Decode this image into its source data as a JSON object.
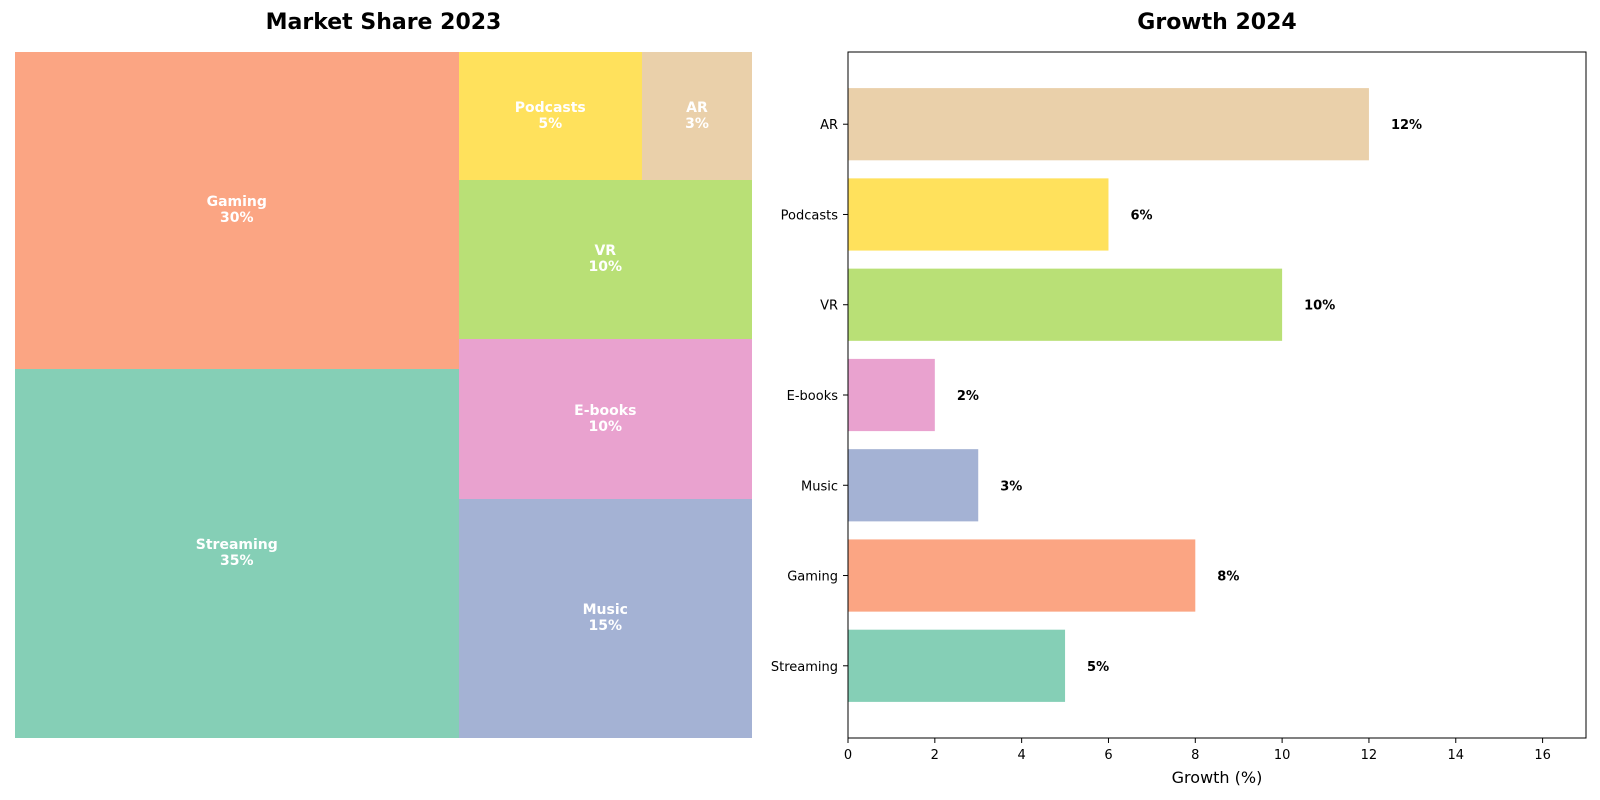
{
  "chart_data": [
    {
      "type": "treemap",
      "title": "Market Share 2023",
      "unit": "%",
      "items": [
        {
          "label": "Streaming",
          "value": 35,
          "color": "#85cfb6"
        },
        {
          "label": "Gaming",
          "value": 30,
          "color": "#fba583"
        },
        {
          "label": "Music",
          "value": 15,
          "color": "#a4b2d4"
        },
        {
          "label": "E-books",
          "value": 10,
          "color": "#e9a2cf"
        },
        {
          "label": "VR",
          "value": 10,
          "color": "#b9e076"
        },
        {
          "label": "Podcasts",
          "value": 5,
          "color": "#ffe15c"
        },
        {
          "label": "AR",
          "value": 3,
          "color": "#ead0aa"
        }
      ]
    },
    {
      "type": "bar",
      "orientation": "horizontal",
      "title": "Growth 2024",
      "xlabel": "Growth (%)",
      "ylabel": "",
      "xlim": [
        0,
        17
      ],
      "xticks": [
        0,
        2,
        4,
        6,
        8,
        10,
        12,
        14,
        16
      ],
      "categories": [
        "Streaming",
        "Gaming",
        "Music",
        "E-books",
        "VR",
        "Podcasts",
        "AR"
      ],
      "values": [
        5,
        8,
        3,
        2,
        10,
        6,
        12
      ],
      "value_labels": [
        "5%",
        "8%",
        "3%",
        "2%",
        "10%",
        "6%",
        "12%"
      ],
      "colors": [
        "#85cfb6",
        "#fba583",
        "#a4b2d4",
        "#e9a2cf",
        "#b9e076",
        "#ffe15c",
        "#ead0aa"
      ],
      "grid": false
    }
  ]
}
